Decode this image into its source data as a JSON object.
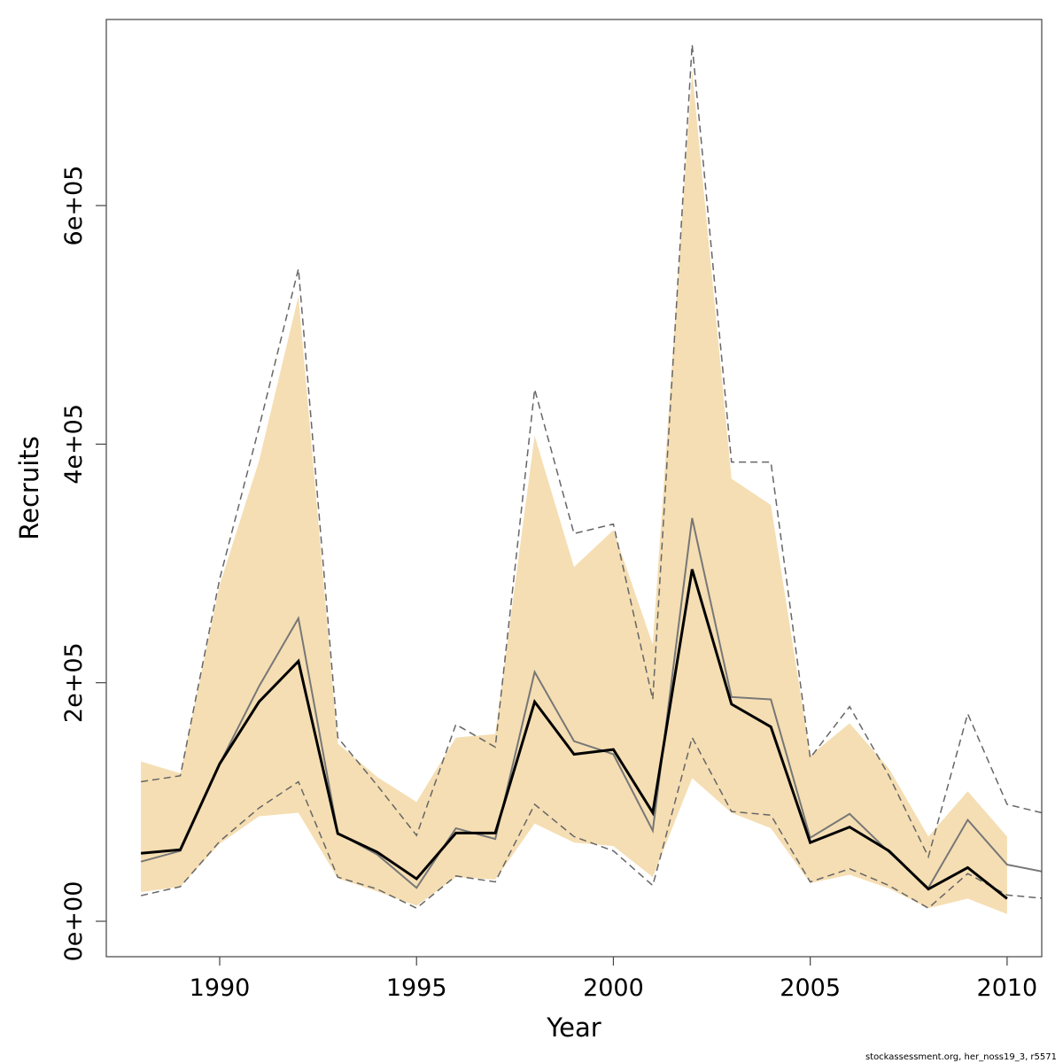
{
  "chart_data": {
    "type": "band-line",
    "xlabel": "Year",
    "ylabel": "Recruits",
    "footer": "stockassessment.org, her_noss19_3, r5571",
    "x": [
      1988,
      1989,
      1990,
      1991,
      1992,
      1993,
      1994,
      1995,
      1996,
      1997,
      1998,
      1999,
      2000,
      2001,
      2002,
      2003,
      2004,
      2005,
      2006,
      2007,
      2008,
      2009,
      2010,
      2011
    ],
    "xlim": [
      1987.12,
      2010.88
    ],
    "xticks": [
      1990,
      1995,
      2000,
      2005,
      2010
    ],
    "ylim": [
      -29700,
      756000
    ],
    "yticks": [
      {
        "value": 0,
        "label": "0e+00"
      },
      {
        "value": 200000,
        "label": "2e+05"
      },
      {
        "value": 400000,
        "label": "4e+05"
      },
      {
        "value": 600000,
        "label": "6e+05"
      }
    ],
    "band": {
      "color": "#f5deb3",
      "upper": [
        134000,
        124000,
        282000,
        386000,
        524000,
        149000,
        121000,
        100000,
        154000,
        157000,
        407000,
        297000,
        328000,
        232000,
        713000,
        371000,
        349000,
        139000,
        166000,
        128000,
        71000,
        109000,
        71000,
        null
      ],
      "lower": [
        24500,
        29000,
        65000,
        88000,
        91000,
        36000,
        25000,
        13000,
        37000,
        35000,
        82000,
        66000,
        63000,
        37000,
        120000,
        91000,
        78000,
        32000,
        39000,
        27500,
        11000,
        19000,
        6000,
        null
      ]
    },
    "series": [
      {
        "color": "#666666",
        "style": "dashed",
        "values": [
          117000,
          122000,
          287000,
          414000,
          547000,
          154000,
          114000,
          72000,
          165000,
          146000,
          446000,
          325000,
          333000,
          186000,
          735000,
          385000,
          385000,
          137000,
          180000,
          122000,
          54000,
          174000,
          98000,
          90000
        ]
      },
      {
        "color": "#666666",
        "style": "dashed",
        "values": [
          21500,
          29000,
          67000,
          95000,
          117000,
          37000,
          27000,
          11000,
          38000,
          33000,
          98000,
          71000,
          59000,
          30000,
          154000,
          92000,
          89000,
          33000,
          44000,
          30000,
          11000,
          40000,
          22000,
          19000
        ]
      },
      {
        "color": "#777777",
        "style": "solid",
        "width": 2,
        "values": [
          50000,
          59000,
          132000,
          197000,
          254000,
          74000,
          56000,
          28000,
          78000,
          69000,
          209000,
          151000,
          140000,
          76000,
          338000,
          188000,
          186000,
          70000,
          90000,
          58000,
          28000,
          85000,
          47500,
          41000
        ]
      },
      {
        "color": "#000000",
        "style": "solid",
        "width": 3,
        "values": [
          57000,
          60000,
          132000,
          184000,
          218000,
          73500,
          58000,
          35600,
          74000,
          74000,
          184000,
          140000,
          144000,
          91000,
          295000,
          182000,
          163000,
          66000,
          79000,
          59000,
          27000,
          45000,
          19000,
          null
        ]
      }
    ]
  }
}
